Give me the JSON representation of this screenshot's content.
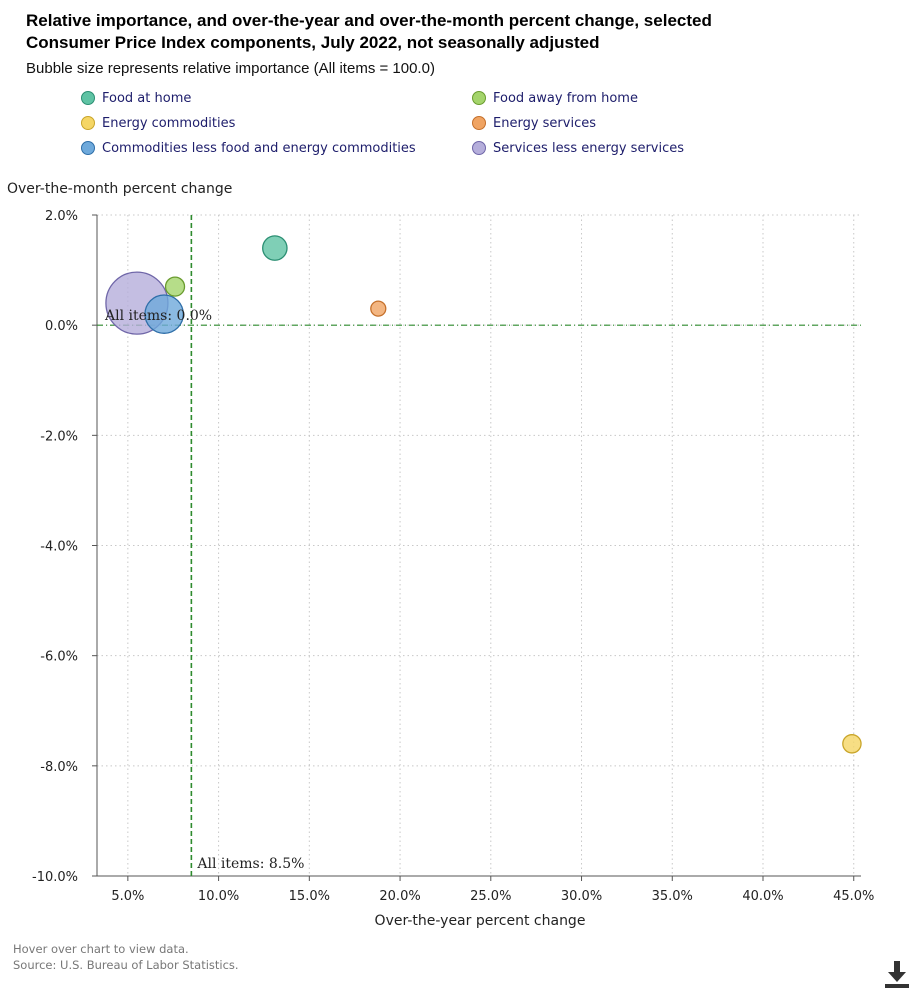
{
  "title_line1": "Relative importance, and over-the-year and over-the-month percent change, selected",
  "title_line2": "Consumer Price Index components, July 2022, not seasonally adjusted",
  "subtitle": "Bubble size represents relative importance (All items = 100.0)",
  "legend": [
    {
      "label": "Food at home",
      "color": "#5fc3a4",
      "stroke": "#2b8f73"
    },
    {
      "label": "Food away from home",
      "color": "#a4d46b",
      "stroke": "#6a9c2f"
    },
    {
      "label": "Energy commodities",
      "color": "#f5d665",
      "stroke": "#c9a52a"
    },
    {
      "label": "Energy services",
      "color": "#f0a463",
      "stroke": "#c5702b"
    },
    {
      "label": "Commodities less food and energy commodities",
      "color": "#6ea9db",
      "stroke": "#2e6ea8"
    },
    {
      "label": "Services less energy services",
      "color": "#b5aedb",
      "stroke": "#6f66a8"
    }
  ],
  "footer": {
    "hover_note": "Hover over chart to view data.",
    "source": "Source: U.S. Bureau of Labor Statistics."
  },
  "chart_data": {
    "type": "scatter",
    "subtype": "bubble",
    "xlabel": "Over-the-year percent change",
    "ylabel": "Over-the-month percent change",
    "xlim": [
      3.3,
      45.4
    ],
    "ylim": [
      -10.0,
      2.0
    ],
    "x_ticks": [
      5,
      10,
      15,
      20,
      25,
      30,
      35,
      40,
      45
    ],
    "x_tick_labels": [
      "5.0%",
      "10.0%",
      "15.0%",
      "20.0%",
      "25.0%",
      "30.0%",
      "35.0%",
      "40.0%",
      "45.0%"
    ],
    "y_ticks": [
      2,
      0,
      -2,
      -4,
      -6,
      -8,
      -10
    ],
    "y_tick_labels": [
      "2.0%",
      "0.0%",
      "-2.0%",
      "-4.0%",
      "-6.0%",
      "-8.0%",
      "-10.0%"
    ],
    "grid": true,
    "reference_lines": [
      {
        "axis": "x",
        "value": 8.5,
        "label": "All items: 8.5%"
      },
      {
        "axis": "y",
        "value": 0.0,
        "label": "All items: 0.0%"
      }
    ],
    "series": [
      {
        "name": "Food at home",
        "x": 13.1,
        "y": 1.4,
        "size": 8.7,
        "color": "#5fc3a4",
        "stroke": "#2b8f73"
      },
      {
        "name": "Food away from home",
        "x": 7.6,
        "y": 0.7,
        "size": 5.3,
        "color": "#a4d46b",
        "stroke": "#6a9c2f"
      },
      {
        "name": "Energy commodities",
        "x": 44.9,
        "y": -7.6,
        "size": 4.9,
        "color": "#f5d665",
        "stroke": "#c9a52a"
      },
      {
        "name": "Energy services",
        "x": 18.8,
        "y": 0.3,
        "size": 3.3,
        "color": "#f0a463",
        "stroke": "#c5702b"
      },
      {
        "name": "Commodities less food and energy commodities",
        "x": 7.0,
        "y": 0.2,
        "size": 21.6,
        "color": "#6ea9db",
        "stroke": "#2e6ea8"
      },
      {
        "name": "Services less energy services",
        "x": 5.5,
        "y": 0.4,
        "size": 56.5,
        "color": "#b5aedb",
        "stroke": "#6f66a8"
      }
    ]
  }
}
